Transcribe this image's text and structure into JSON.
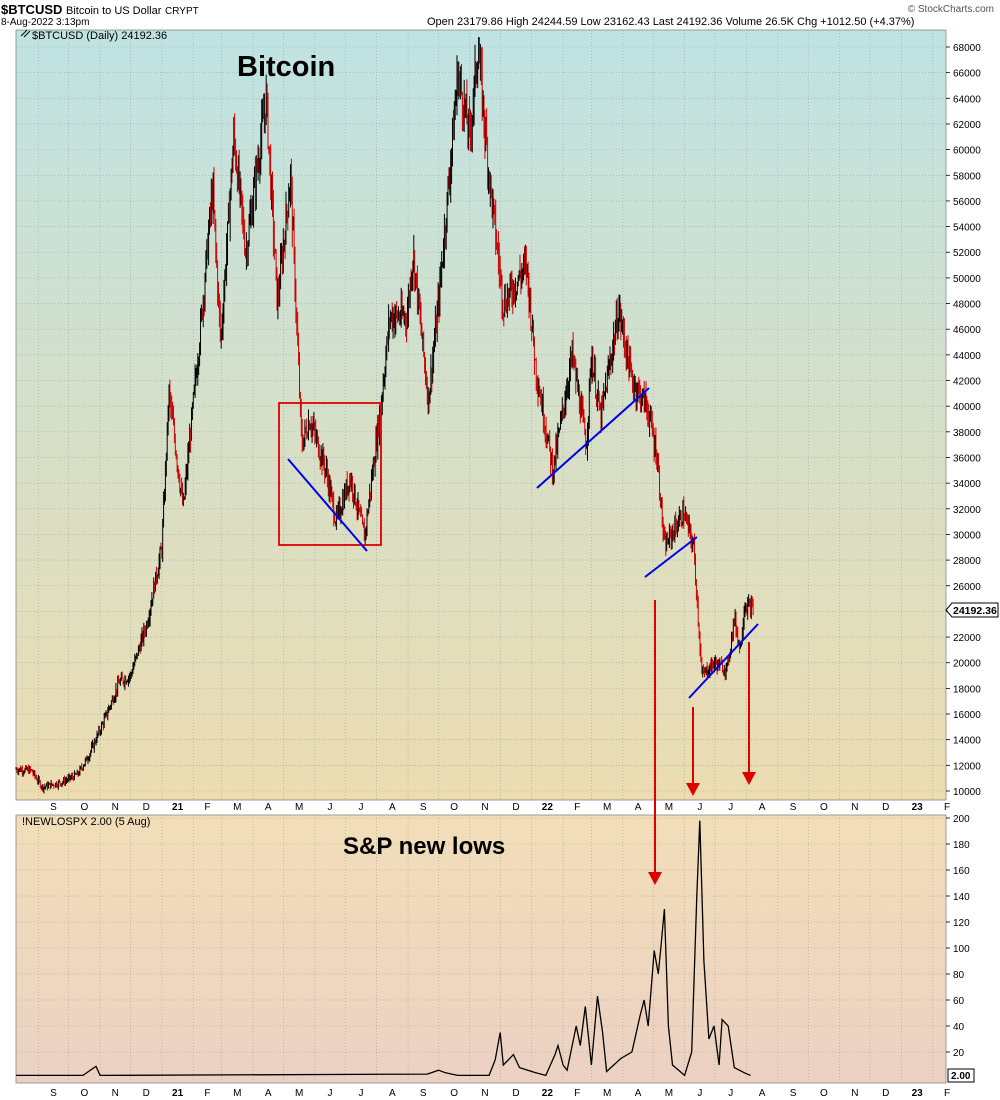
{
  "header": {
    "symbol": "$BTCUSD",
    "name": "Bitcoin to US Dollar",
    "exchange": "CRYPT",
    "date": "8-Aug-2022 3:13pm",
    "ohlc_text": "Open 23179.86  High 24244.59  Low 23162.43  Last 24192.36  Volume 26.5K  Chg +1012.50 (+4.37%)",
    "watermark": "© StockCharts.com"
  },
  "price_panel": {
    "legend": "$BTCUSD (Daily) 24192.36",
    "annotation": "Bitcoin",
    "last_tag": "24192.36"
  },
  "lower_panel": {
    "legend": "!NEWLOSPX 2.00 (5 Aug)",
    "annotation": "S&P new lows",
    "last_tag": "2.00"
  },
  "colors": {
    "up": "#000000",
    "down": "#cc0000",
    "trendline": "#0000ee",
    "annotation": "#dd0000",
    "price_bg_top": "#bfe3e3",
    "price_bg_bottom": "#ecdcb0",
    "lower_bg_top": "#f1deb8",
    "lower_bg_bottom": "#ecd1c3"
  },
  "chart_data": [
    {
      "type": "line",
      "series": [
        {
          "name": "$BTCUSD",
          "points": [
            [
              "2020-08-10",
              11700
            ],
            [
              "2020-08-25",
              11600
            ],
            [
              "2020-09-05",
              10300
            ],
            [
              "2020-09-25",
              10700
            ],
            [
              "2020-10-10",
              11300
            ],
            [
              "2020-10-21",
              12800
            ],
            [
              "2020-11-05",
              15500
            ],
            [
              "2020-11-20",
              18500
            ],
            [
              "2020-12-01",
              19000
            ],
            [
              "2020-12-17",
              23000
            ],
            [
              "2021-01-01",
              29000
            ],
            [
              "2021-01-08",
              41000
            ],
            [
              "2021-01-22",
              32000
            ],
            [
              "2021-02-08",
              46000
            ],
            [
              "2021-02-20",
              57000
            ],
            [
              "2021-02-28",
              45000
            ],
            [
              "2021-03-13",
              61000
            ],
            [
              "2021-03-25",
              52000
            ],
            [
              "2021-04-14",
              64000
            ],
            [
              "2021-04-25",
              48000
            ],
            [
              "2021-05-08",
              58000
            ],
            [
              "2021-05-19",
              37000
            ],
            [
              "2021-05-27",
              39000
            ],
            [
              "2021-06-12",
              35000
            ],
            [
              "2021-06-22",
              31000
            ],
            [
              "2021-07-06",
              34500
            ],
            [
              "2021-07-20",
              29800
            ],
            [
              "2021-08-05",
              40000
            ],
            [
              "2021-08-14",
              47000
            ],
            [
              "2021-08-31",
              47000
            ],
            [
              "2021-09-06",
              52000
            ],
            [
              "2021-09-21",
              40500
            ],
            [
              "2021-10-01",
              48000
            ],
            [
              "2021-10-15",
              61000
            ],
            [
              "2021-10-20",
              66000
            ],
            [
              "2021-11-01",
              61000
            ],
            [
              "2021-11-09",
              68000
            ],
            [
              "2021-11-20",
              58000
            ],
            [
              "2021-12-04",
              48000
            ],
            [
              "2021-12-27",
              51000
            ],
            [
              "2022-01-05",
              43000
            ],
            [
              "2022-01-22",
              35000
            ],
            [
              "2022-02-10",
              44000
            ],
            [
              "2022-02-24",
              37000
            ],
            [
              "2022-03-01",
              44000
            ],
            [
              "2022-03-10",
              39000
            ],
            [
              "2022-03-28",
              47500
            ],
            [
              "2022-04-10",
              42000
            ],
            [
              "2022-04-25",
              40000
            ],
            [
              "2022-05-05",
              36000
            ],
            [
              "2022-05-12",
              29000
            ],
            [
              "2022-05-31",
              31700
            ],
            [
              "2022-06-10",
              29000
            ],
            [
              "2022-06-18",
              19000
            ],
            [
              "2022-06-30",
              20000
            ],
            [
              "2022-07-13",
              19500
            ],
            [
              "2022-07-20",
              23500
            ],
            [
              "2022-07-26",
              21000
            ],
            [
              "2022-07-30",
              24500
            ],
            [
              "2022-08-08",
              24192
            ]
          ]
        }
      ],
      "xlabel": "",
      "ylabel": "",
      "ylim": [
        10000,
        68000
      ],
      "y_ticks": [
        10000,
        12000,
        14000,
        16000,
        18000,
        20000,
        22000,
        24000,
        26000,
        28000,
        30000,
        32000,
        34000,
        36000,
        38000,
        40000,
        42000,
        44000,
        46000,
        48000,
        50000,
        52000,
        54000,
        56000,
        58000,
        60000,
        62000,
        64000,
        66000,
        68000
      ],
      "x_tick_labels": [
        "S",
        "O",
        "N",
        "D",
        "21",
        "F",
        "M",
        "A",
        "M",
        "J",
        "J",
        "A",
        "S",
        "O",
        "N",
        "D",
        "22",
        "F",
        "M",
        "A",
        "M",
        "J",
        "J",
        "A",
        "S",
        "O",
        "N",
        "D",
        "23",
        "F"
      ],
      "grid": true,
      "legend": "top-left",
      "annotations": [
        "Bitcoin"
      ]
    },
    {
      "type": "line",
      "series": [
        {
          "name": "!NEWLOSPX",
          "points": [
            [
              "2020-08-10",
              2
            ],
            [
              "2020-10-15",
              2
            ],
            [
              "2020-10-28",
              9
            ],
            [
              "2020-11-01",
              2
            ],
            [
              "2021-09-20",
              3
            ],
            [
              "2021-10-01",
              6
            ],
            [
              "2021-10-08",
              4
            ],
            [
              "2021-10-20",
              2
            ],
            [
              "2021-11-20",
              2
            ],
            [
              "2021-11-26",
              14
            ],
            [
              "2021-12-01",
              35
            ],
            [
              "2021-12-04",
              10
            ],
            [
              "2021-12-14",
              18
            ],
            [
              "2021-12-20",
              8
            ],
            [
              "2022-01-05",
              4
            ],
            [
              "2022-01-15",
              2
            ],
            [
              "2022-01-24",
              18
            ],
            [
              "2022-01-27",
              25
            ],
            [
              "2022-02-01",
              10
            ],
            [
              "2022-02-05",
              6
            ],
            [
              "2022-02-14",
              40
            ],
            [
              "2022-02-18",
              25
            ],
            [
              "2022-02-23",
              55
            ],
            [
              "2022-03-01",
              10
            ],
            [
              "2022-03-07",
              63
            ],
            [
              "2022-03-12",
              35
            ],
            [
              "2022-03-16",
              5
            ],
            [
              "2022-03-30",
              15
            ],
            [
              "2022-04-10",
              20
            ],
            [
              "2022-04-18",
              48
            ],
            [
              "2022-04-22",
              60
            ],
            [
              "2022-04-26",
              40
            ],
            [
              "2022-05-02",
              98
            ],
            [
              "2022-05-06",
              80
            ],
            [
              "2022-05-09",
              104
            ],
            [
              "2022-05-12",
              130
            ],
            [
              "2022-05-16",
              40
            ],
            [
              "2022-05-20",
              10
            ],
            [
              "2022-06-01",
              2
            ],
            [
              "2022-06-08",
              20
            ],
            [
              "2022-06-13",
              140
            ],
            [
              "2022-06-16",
              198
            ],
            [
              "2022-06-20",
              90
            ],
            [
              "2022-06-25",
              30
            ],
            [
              "2022-06-30",
              40
            ],
            [
              "2022-07-05",
              10
            ],
            [
              "2022-07-08",
              45
            ],
            [
              "2022-07-14",
              40
            ],
            [
              "2022-07-20",
              8
            ],
            [
              "2022-07-30",
              4
            ],
            [
              "2022-08-05",
              2
            ]
          ]
        }
      ],
      "xlabel": "",
      "ylabel": "",
      "ylim": [
        0,
        200
      ],
      "y_ticks": [
        20,
        40,
        60,
        80,
        100,
        120,
        140,
        160,
        180,
        200
      ],
      "x_tick_labels": [
        "S",
        "O",
        "N",
        "D",
        "21",
        "F",
        "M",
        "A",
        "M",
        "J",
        "J",
        "A",
        "S",
        "O",
        "N",
        "D",
        "22",
        "F",
        "M",
        "A",
        "M",
        "J",
        "J",
        "A",
        "S",
        "O",
        "N",
        "D",
        "23",
        "F"
      ],
      "grid": true,
      "legend": "top-left",
      "annotations": [
        "S&P new lows"
      ]
    }
  ]
}
